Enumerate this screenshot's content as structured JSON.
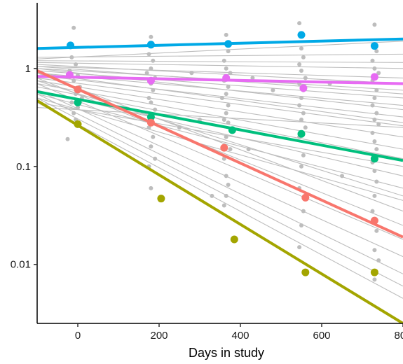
{
  "chart_data": {
    "type": "scatter",
    "xlabel": "Days in study",
    "ylabel": "",
    "xlim": [
      -100,
      800
    ],
    "ylim": [
      0.0025,
      5
    ],
    "y_scale": "log",
    "x_ticks": [
      0,
      200,
      400,
      600,
      800
    ],
    "x_tick_labels": [
      "0",
      "200",
      "400",
      "600",
      "800"
    ],
    "y_ticks": [
      0.01,
      0.1,
      1
    ],
    "y_tick_labels": [
      "0.01",
      "0.1",
      "1"
    ],
    "grid": false,
    "legend": "none",
    "background_trend_lines": [
      [
        1.25,
        1.9
      ],
      [
        1.15,
        1.0
      ],
      [
        1.05,
        0.8
      ],
      [
        1.0,
        0.6
      ],
      [
        0.95,
        0.5
      ],
      [
        0.9,
        0.42
      ],
      [
        0.85,
        0.32
      ],
      [
        0.8,
        0.26
      ],
      [
        0.75,
        0.2
      ],
      [
        0.7,
        0.15
      ],
      [
        0.65,
        0.12
      ],
      [
        0.6,
        0.08
      ],
      [
        0.55,
        0.06
      ],
      [
        0.5,
        0.045
      ],
      [
        0.9,
        0.035
      ],
      [
        0.8,
        0.025
      ],
      [
        0.7,
        0.018
      ],
      [
        0.6,
        0.012
      ],
      [
        0.55,
        0.008
      ],
      [
        0.5,
        0.006
      ],
      [
        0.45,
        0.0045
      ],
      [
        1.1,
        0.7
      ],
      [
        1.0,
        0.38
      ],
      [
        0.9,
        0.28
      ],
      [
        1.3,
        1.4
      ],
      [
        1.2,
        1.15
      ],
      [
        0.45,
        0.1
      ],
      [
        0.4,
        0.25
      ],
      [
        0.75,
        0.05
      ],
      [
        1.05,
        0.55
      ]
    ],
    "background_points": [
      [
        -10,
        2.6
      ],
      [
        -15,
        1.3
      ],
      [
        -5,
        1.1
      ],
      [
        -20,
        0.95
      ],
      [
        0,
        0.85
      ],
      [
        -10,
        0.75
      ],
      [
        5,
        0.65
      ],
      [
        -5,
        0.55
      ],
      [
        10,
        0.5
      ],
      [
        -15,
        0.45
      ],
      [
        0,
        0.4
      ],
      [
        -10,
        0.35
      ],
      [
        -5,
        0.3
      ],
      [
        -25,
        0.19
      ],
      [
        180,
        2.1
      ],
      [
        175,
        1.4
      ],
      [
        185,
        1.2
      ],
      [
        180,
        1.0
      ],
      [
        170,
        0.9
      ],
      [
        190,
        0.8
      ],
      [
        180,
        0.7
      ],
      [
        185,
        0.6
      ],
      [
        175,
        0.5
      ],
      [
        180,
        0.45
      ],
      [
        190,
        0.38
      ],
      [
        180,
        0.3
      ],
      [
        175,
        0.25
      ],
      [
        185,
        0.2
      ],
      [
        180,
        0.16
      ],
      [
        190,
        0.12
      ],
      [
        175,
        0.1
      ],
      [
        180,
        0.06
      ],
      [
        365,
        2.2
      ],
      [
        370,
        1.5
      ],
      [
        360,
        1.2
      ],
      [
        365,
        1.0
      ],
      [
        375,
        0.9
      ],
      [
        360,
        0.75
      ],
      [
        370,
        0.65
      ],
      [
        365,
        0.55
      ],
      [
        355,
        0.5
      ],
      [
        370,
        0.42
      ],
      [
        365,
        0.35
      ],
      [
        360,
        0.3
      ],
      [
        370,
        0.28
      ],
      [
        365,
        0.2
      ],
      [
        375,
        0.15
      ],
      [
        360,
        0.12
      ],
      [
        365,
        0.08
      ],
      [
        370,
        0.065
      ],
      [
        365,
        0.05
      ],
      [
        360,
        0.04
      ],
      [
        545,
        2.9
      ],
      [
        550,
        1.6
      ],
      [
        555,
        1.3
      ],
      [
        545,
        1.1
      ],
      [
        550,
        0.95
      ],
      [
        560,
        0.8
      ],
      [
        545,
        0.7
      ],
      [
        555,
        0.6
      ],
      [
        550,
        0.5
      ],
      [
        545,
        0.42
      ],
      [
        555,
        0.35
      ],
      [
        550,
        0.3
      ],
      [
        560,
        0.25
      ],
      [
        545,
        0.2
      ],
      [
        555,
        0.13
      ],
      [
        550,
        0.1
      ],
      [
        545,
        0.06
      ],
      [
        555,
        0.035
      ],
      [
        550,
        0.025
      ],
      [
        545,
        0.015
      ],
      [
        730,
        2.8
      ],
      [
        735,
        1.5
      ],
      [
        725,
        1.2
      ],
      [
        730,
        1.0
      ],
      [
        740,
        0.9
      ],
      [
        725,
        0.75
      ],
      [
        735,
        0.6
      ],
      [
        730,
        0.5
      ],
      [
        725,
        0.42
      ],
      [
        735,
        0.35
      ],
      [
        730,
        0.3
      ],
      [
        740,
        0.27
      ],
      [
        725,
        0.22
      ],
      [
        730,
        0.18
      ],
      [
        735,
        0.15
      ],
      [
        725,
        0.11
      ],
      [
        730,
        0.09
      ],
      [
        735,
        0.07
      ],
      [
        730,
        0.05
      ],
      [
        725,
        0.035
      ],
      [
        735,
        0.022
      ],
      [
        730,
        0.014
      ],
      [
        740,
        0.011
      ],
      [
        730,
        0.007
      ],
      [
        280,
        0.9
      ],
      [
        300,
        0.3
      ],
      [
        330,
        0.05
      ],
      [
        430,
        0.8
      ],
      [
        480,
        0.6
      ],
      [
        420,
        0.15
      ],
      [
        620,
        0.7
      ],
      [
        650,
        0.08
      ],
      [
        250,
        0.25
      ]
    ],
    "series": [
      {
        "color": "#00a9e6",
        "fit": [
          1.6,
          2.0
        ],
        "points": [
          [
            -18,
            1.72
          ],
          [
            180,
            1.75
          ],
          [
            370,
            1.78
          ],
          [
            550,
            2.2
          ],
          [
            730,
            1.7
          ]
        ]
      },
      {
        "color": "#e76bf3",
        "fit": [
          0.83,
          0.7
        ],
        "points": [
          [
            -20,
            0.86
          ],
          [
            180,
            0.75
          ],
          [
            365,
            0.8
          ],
          [
            555,
            0.63
          ],
          [
            730,
            0.82
          ]
        ]
      },
      {
        "color": "#00bf7d",
        "fit": [
          0.58,
          0.115
        ],
        "points": [
          [
            0,
            0.45
          ],
          [
            180,
            0.32
          ],
          [
            380,
            0.235
          ],
          [
            550,
            0.215
          ],
          [
            730,
            0.12
          ]
        ]
      },
      {
        "color": "#f8766d",
        "fit": [
          0.95,
          0.019
        ],
        "points": [
          [
            0,
            0.61
          ],
          [
            180,
            0.28
          ],
          [
            360,
            0.155
          ],
          [
            560,
            0.048
          ],
          [
            730,
            0.028
          ]
        ]
      },
      {
        "color": "#a3a500",
        "fit": [
          0.47,
          0.0025
        ],
        "points": [
          [
            0,
            0.27
          ],
          [
            205,
            0.047
          ],
          [
            385,
            0.018
          ],
          [
            560,
            0.0083
          ],
          [
            730,
            0.0083
          ]
        ]
      }
    ]
  }
}
